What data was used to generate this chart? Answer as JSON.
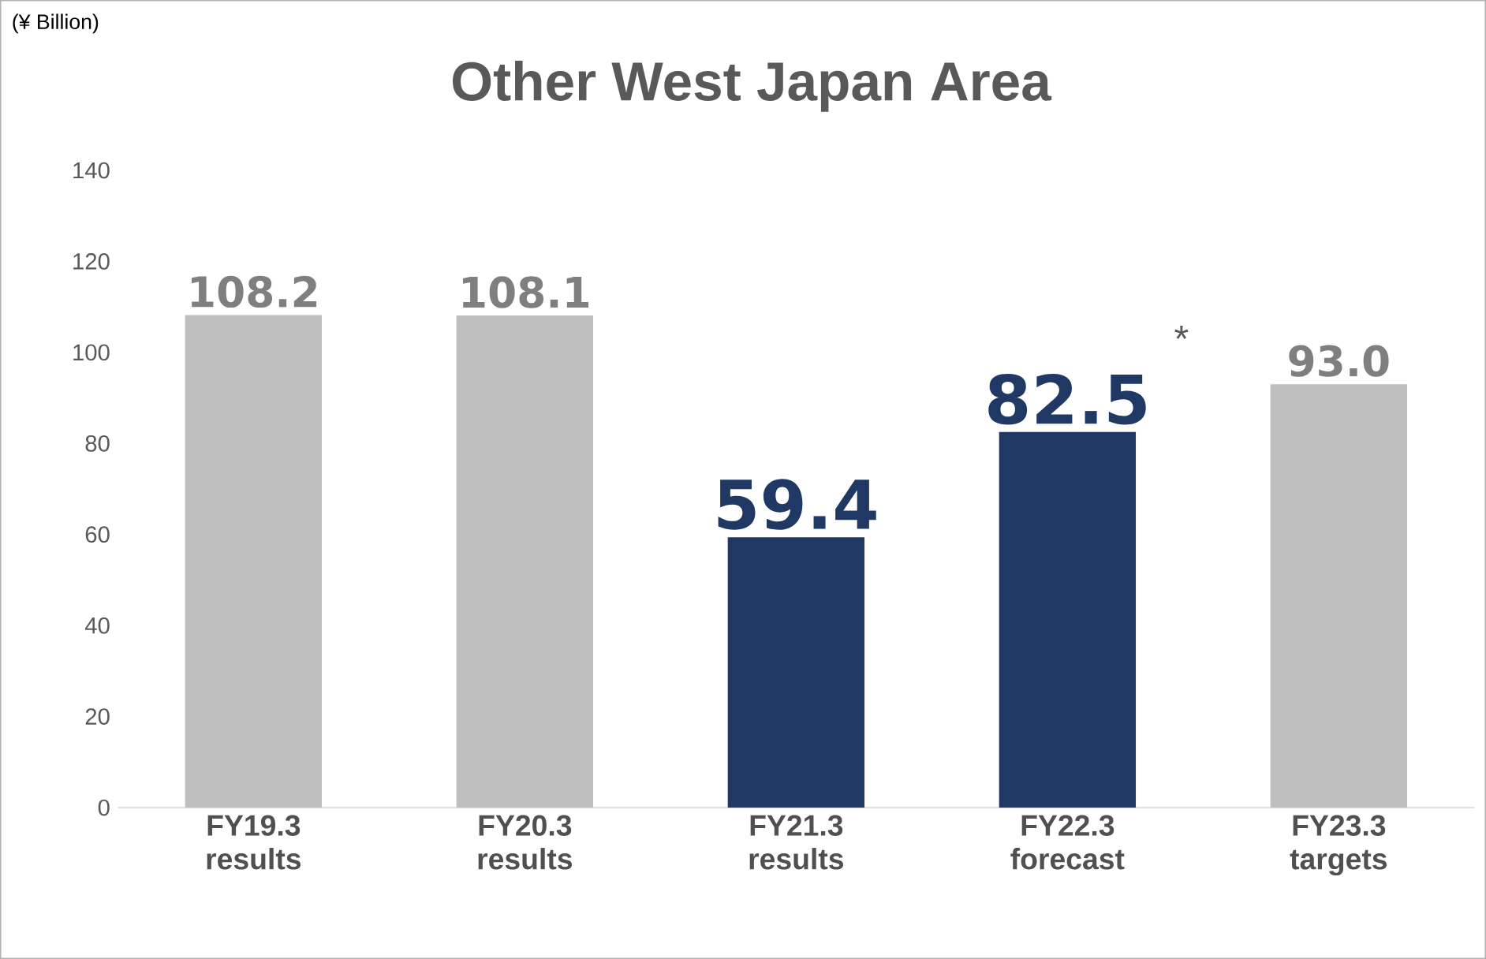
{
  "chart_data": {
    "type": "bar",
    "title": "Other West Japan Area",
    "categories": [
      "FY19.3 results",
      "FY20.3 results",
      "FY21.3 results",
      "FY22.3 forecast",
      "FY23.3 targets"
    ],
    "values": [
      108.2,
      108.1,
      59.4,
      82.5,
      93.0
    ],
    "colors": [
      "#bfbfbf",
      "#bfbfbf",
      "#1f3864",
      "#1f3864",
      "#bfbfbf"
    ],
    "value_labels": [
      "108.2",
      "108.1",
      "59.4",
      "82.5",
      "93.0"
    ],
    "ylim": [
      0,
      140
    ],
    "yticks": [
      0,
      20,
      40,
      60,
      80,
      100,
      120,
      140
    ],
    "grid": false,
    "annotations": [
      "(¥ Billion)",
      "*"
    ]
  }
}
